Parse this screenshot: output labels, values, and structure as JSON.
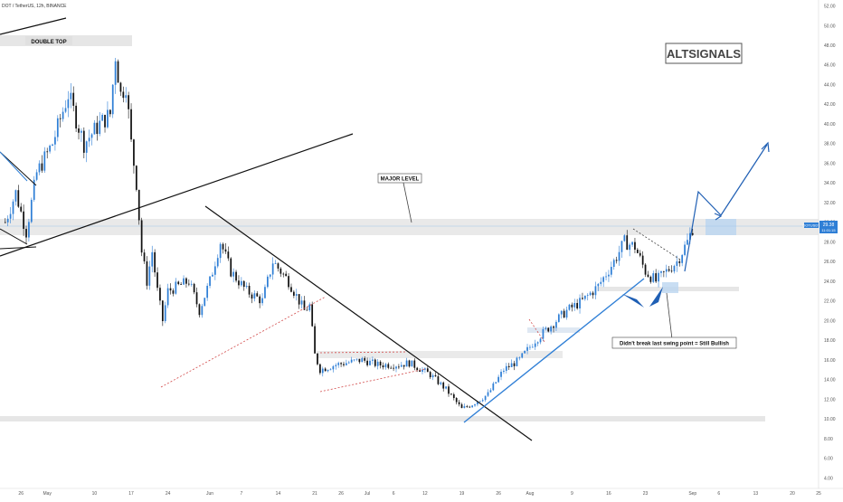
{
  "symbol_title": "DOT / TetherUS, 12h, BINANCE",
  "chart_data": {
    "type": "candlestick",
    "y_ticks": [
      4,
      6,
      8,
      10,
      12,
      14,
      16,
      18,
      20,
      22,
      24,
      26,
      28,
      30,
      32,
      34,
      36,
      38,
      40,
      42,
      44,
      46,
      48,
      50,
      52
    ],
    "y_tick_labels": [
      "4.00",
      "6.00",
      "8.00",
      "10.00",
      "12.00",
      "14.00",
      "16.00",
      "18.00",
      "20.00",
      "22.00",
      "24.00",
      "26.00",
      "28.00",
      "30.00",
      "32.00",
      "34.00",
      "36.00",
      "38.00",
      "40.00",
      "42.00",
      "44.00",
      "46.00",
      "48.00",
      "50.00",
      "52.00"
    ],
    "ylim": [
      3.2,
      52.6
    ],
    "x_ticks": [
      {
        "label": "26",
        "date": "2021-04-26"
      },
      {
        "label": "May",
        "date": "2021-05-01"
      },
      {
        "label": "10",
        "date": "2021-05-10"
      },
      {
        "label": "17",
        "date": "2021-05-17"
      },
      {
        "label": "24",
        "date": "2021-05-24"
      },
      {
        "label": "Jun",
        "date": "2021-06-01"
      },
      {
        "label": "7",
        "date": "2021-06-07"
      },
      {
        "label": "14",
        "date": "2021-06-14"
      },
      {
        "label": "21",
        "date": "2021-06-21"
      },
      {
        "label": "26",
        "date": "2021-06-26"
      },
      {
        "label": "Jul",
        "date": "2021-07-01"
      },
      {
        "label": "6",
        "date": "2021-07-06"
      },
      {
        "label": "12",
        "date": "2021-07-12"
      },
      {
        "label": "19",
        "date": "2021-07-19"
      },
      {
        "label": "26",
        "date": "2021-07-26"
      },
      {
        "label": "Aug",
        "date": "2021-08-01"
      },
      {
        "label": "9",
        "date": "2021-08-09"
      },
      {
        "label": "16",
        "date": "2021-08-16"
      },
      {
        "label": "23",
        "date": "2021-08-23"
      },
      {
        "label": "Sep",
        "date": "2021-09-01"
      },
      {
        "label": "6",
        "date": "2021-09-06"
      },
      {
        "label": "13",
        "date": "2021-09-13"
      },
      {
        "label": "20",
        "date": "2021-09-20"
      },
      {
        "label": "25",
        "date": "2021-09-25"
      }
    ],
    "xlim": [
      "2021-04-22",
      "2021-09-25"
    ],
    "price_label": "29.38",
    "price_value": 29.38,
    "price_sub_label": "11:01:15",
    "symbol_tag": "DOTUSDT",
    "colors": {
      "up": "#2f7fd6",
      "down": "#111111",
      "annotation": "#1f5fb4",
      "zone": "#e0e0e0",
      "zone_blue": "#bcd6f0"
    },
    "candle_points": [
      [
        "2021-04-23",
        30
      ],
      [
        "2021-04-25",
        33
      ],
      [
        "2021-04-27",
        29
      ],
      [
        "2021-04-29",
        35
      ],
      [
        "2021-05-02",
        38
      ],
      [
        "2021-05-05",
        43
      ],
      [
        "2021-05-08",
        38
      ],
      [
        "2021-05-11",
        40
      ],
      [
        "2021-05-13",
        41
      ],
      [
        "2021-05-14",
        47
      ],
      [
        "2021-05-15",
        43
      ],
      [
        "2021-05-16",
        44
      ],
      [
        "2021-05-17",
        38
      ],
      [
        "2021-05-18",
        34
      ],
      [
        "2021-05-19",
        27
      ],
      [
        "2021-05-20",
        24
      ],
      [
        "2021-05-21",
        27
      ],
      [
        "2021-05-22",
        23
      ],
      [
        "2021-05-23",
        20
      ],
      [
        "2021-05-24",
        23
      ],
      [
        "2021-05-28",
        24
      ],
      [
        "2021-05-30",
        21
      ],
      [
        "2021-06-01",
        24
      ],
      [
        "2021-06-03",
        28
      ],
      [
        "2021-06-05",
        25
      ],
      [
        "2021-06-08",
        23
      ],
      [
        "2021-06-11",
        22
      ],
      [
        "2021-06-13",
        26
      ],
      [
        "2021-06-16",
        24
      ],
      [
        "2021-06-19",
        21
      ],
      [
        "2021-06-20",
        21.5
      ],
      [
        "2021-06-21",
        16.5
      ],
      [
        "2021-06-22",
        15
      ],
      [
        "2021-06-25",
        15.5
      ],
      [
        "2021-06-30",
        16
      ],
      [
        "2021-07-03",
        15.5
      ],
      [
        "2021-07-07",
        15.5
      ],
      [
        "2021-07-09",
        15.7
      ],
      [
        "2021-07-13",
        14.5
      ],
      [
        "2021-07-16",
        13
      ],
      [
        "2021-07-19",
        11
      ],
      [
        "2021-07-21",
        11.5
      ],
      [
        "2021-07-24",
        12.5
      ],
      [
        "2021-07-27",
        15
      ],
      [
        "2021-07-30",
        16
      ],
      [
        "2021-08-02",
        18
      ],
      [
        "2021-08-05",
        19.5
      ],
      [
        "2021-08-08",
        21
      ],
      [
        "2021-08-11",
        22
      ],
      [
        "2021-08-14",
        23.5
      ],
      [
        "2021-08-17",
        26
      ],
      [
        "2021-08-19",
        28
      ],
      [
        "2021-08-21",
        27.5
      ],
      [
        "2021-08-23",
        25
      ],
      [
        "2021-08-25",
        24
      ],
      [
        "2021-08-27",
        25
      ],
      [
        "2021-08-29",
        26
      ],
      [
        "2021-08-31",
        28
      ],
      [
        "2021-09-01",
        29.4
      ]
    ]
  },
  "annotations": {
    "double_top": "DOUBLE TOP",
    "major_level": "MAJOR LEVEL",
    "brand": "ALTSIGNALS",
    "swing_note": "Didn't break last swing point = Still Bullish"
  }
}
